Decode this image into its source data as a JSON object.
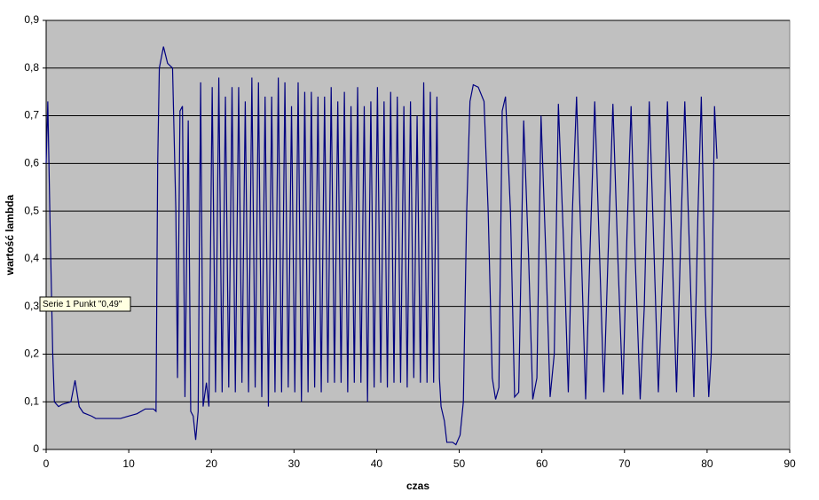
{
  "chart_data": {
    "type": "line",
    "xlabel": "czas",
    "ylabel": "wartość lambda",
    "annotation": "Serie 1 Punkt \"0,49\"",
    "color": "#000080",
    "x": [
      0,
      0.2,
      0.5,
      0.8,
      1.0,
      1.5,
      2,
      3,
      3.5,
      4,
      4.5,
      5.5,
      6,
      9,
      10,
      11,
      12,
      13,
      13.3,
      13.5,
      13.7,
      14.2,
      14.7,
      15.3,
      15.7,
      15.9,
      16.2,
      16.5,
      16.8,
      17.2,
      17.5,
      17.8,
      18.1,
      18.4,
      18.7,
      19.0,
      19.4,
      19.7,
      20.1,
      20.5,
      20.9,
      21.3,
      21.7,
      22.1,
      22.5,
      22.9,
      23.3,
      23.7,
      24.1,
      24.5,
      24.9,
      25.3,
      25.7,
      26.1,
      26.5,
      26.9,
      27.3,
      27.7,
      28.1,
      28.5,
      28.9,
      29.3,
      29.7,
      30.1,
      30.5,
      30.9,
      31.3,
      31.7,
      32.1,
      32.5,
      32.9,
      33.3,
      33.7,
      34.1,
      34.5,
      34.9,
      35.3,
      35.7,
      36.1,
      36.5,
      36.9,
      37.3,
      37.7,
      38.1,
      38.5,
      38.9,
      39.3,
      39.7,
      40.1,
      40.5,
      40.9,
      41.3,
      41.7,
      42.1,
      42.5,
      42.9,
      43.3,
      43.7,
      44.1,
      44.5,
      44.9,
      45.3,
      45.7,
      46.1,
      46.5,
      46.9,
      47.3,
      47.6,
      47.8,
      48.2,
      48.5,
      49.2,
      49.6,
      50.1,
      50.5,
      50.9,
      51.3,
      51.7,
      52.3,
      53.0,
      53.5,
      54.0,
      54.4,
      54.8,
      55.2,
      55.6,
      56.2,
      56.7,
      57.2,
      57.8,
      58.4,
      58.9,
      59.4,
      59.9,
      60.5,
      61.0,
      61.5,
      62.0,
      62.7,
      63.2,
      63.7,
      64.2,
      64.8,
      65.3,
      65.8,
      66.4,
      67.0,
      67.5,
      68.0,
      68.6,
      69.2,
      69.8,
      70.3,
      70.8,
      71.3,
      71.9,
      72.4,
      73.0,
      73.6,
      74.1,
      74.7,
      75.2,
      75.8,
      76.3,
      76.9,
      77.3,
      77.9,
      78.4,
      78.9,
      79.3,
      79.8,
      80.2,
      80.5,
      80.9,
      81.2
    ],
    "values": [
      0.6,
      0.73,
      0.45,
      0.2,
      0.1,
      0.09,
      0.095,
      0.1,
      0.145,
      0.09,
      0.077,
      0.07,
      0.065,
      0.065,
      0.07,
      0.075,
      0.085,
      0.085,
      0.08,
      0.6,
      0.8,
      0.845,
      0.81,
      0.8,
      0.5,
      0.15,
      0.71,
      0.72,
      0.11,
      0.69,
      0.08,
      0.07,
      0.02,
      0.08,
      0.77,
      0.09,
      0.14,
      0.09,
      0.76,
      0.12,
      0.78,
      0.12,
      0.74,
      0.13,
      0.76,
      0.12,
      0.76,
      0.14,
      0.73,
      0.12,
      0.78,
      0.13,
      0.77,
      0.11,
      0.74,
      0.09,
      0.74,
      0.12,
      0.78,
      0.12,
      0.77,
      0.13,
      0.72,
      0.12,
      0.77,
      0.1,
      0.75,
      0.12,
      0.75,
      0.13,
      0.74,
      0.12,
      0.74,
      0.14,
      0.76,
      0.14,
      0.73,
      0.14,
      0.75,
      0.12,
      0.72,
      0.14,
      0.76,
      0.14,
      0.72,
      0.1,
      0.73,
      0.13,
      0.76,
      0.14,
      0.73,
      0.13,
      0.75,
      0.14,
      0.74,
      0.14,
      0.72,
      0.13,
      0.73,
      0.15,
      0.7,
      0.14,
      0.77,
      0.14,
      0.75,
      0.14,
      0.74,
      0.15,
      0.09,
      0.06,
      0.015,
      0.015,
      0.01,
      0.03,
      0.1,
      0.5,
      0.73,
      0.765,
      0.76,
      0.73,
      0.5,
      0.15,
      0.105,
      0.13,
      0.71,
      0.74,
      0.5,
      0.11,
      0.12,
      0.69,
      0.4,
      0.105,
      0.15,
      0.7,
      0.4,
      0.11,
      0.2,
      0.725,
      0.4,
      0.12,
      0.5,
      0.74,
      0.4,
      0.105,
      0.4,
      0.73,
      0.4,
      0.12,
      0.4,
      0.725,
      0.4,
      0.115,
      0.45,
      0.72,
      0.4,
      0.105,
      0.3,
      0.73,
      0.4,
      0.12,
      0.4,
      0.73,
      0.4,
      0.12,
      0.5,
      0.73,
      0.4,
      0.11,
      0.5,
      0.74,
      0.3,
      0.11,
      0.2,
      0.72,
      0.61
    ],
    "xlim": [
      0,
      90
    ],
    "xticks": [
      0,
      10,
      20,
      30,
      40,
      50,
      60,
      70,
      80,
      90
    ],
    "ylim": [
      0,
      0.9
    ],
    "yticks": [
      0,
      {
        "value": 0.1,
        "label": "0,1"
      },
      {
        "value": 0.2,
        "label": "0,2"
      },
      {
        "value": 0.3,
        "label": "0,3"
      },
      {
        "value": 0.4,
        "label": "0,4"
      },
      {
        "value": 0.5,
        "label": "0,5"
      },
      {
        "value": 0.6,
        "label": "0,6"
      },
      {
        "value": 0.7,
        "label": "0,7"
      },
      {
        "value": 0.8,
        "label": "0,8"
      },
      {
        "value": 0.9,
        "label": "0,9"
      }
    ],
    "grid": true
  }
}
